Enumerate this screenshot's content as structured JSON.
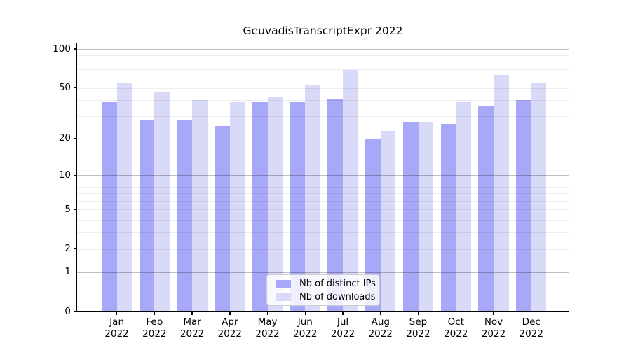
{
  "title": "GeuvadisTranscriptExpr 2022",
  "chart_data": {
    "type": "bar",
    "title": "GeuvadisTranscriptExpr 2022",
    "categories": [
      "Jan 2022",
      "Feb 2022",
      "Mar 2022",
      "Apr 2022",
      "May 2022",
      "Jun 2022",
      "Jul 2022",
      "Aug 2022",
      "Sep 2022",
      "Oct 2022",
      "Nov 2022",
      "Dec 2022"
    ],
    "x_tick_month": [
      "Jan",
      "Feb",
      "Mar",
      "Apr",
      "May",
      "Jun",
      "Jul",
      "Aug",
      "Sep",
      "Oct",
      "Nov",
      "Dec"
    ],
    "x_tick_year": "2022",
    "series": [
      {
        "name": "Nb of distinct IPs",
        "color": "#a8a8f8",
        "values": [
          39,
          28,
          28,
          25,
          39,
          39,
          41,
          20,
          27,
          26,
          36,
          40
        ]
      },
      {
        "name": "Nb of downloads",
        "color": "#d9d9f8",
        "values": [
          55,
          47,
          40,
          39,
          43,
          52,
          69,
          23,
          27,
          39,
          63,
          55
        ]
      }
    ],
    "ylabel": "",
    "xlabel": "",
    "yscale": "log10(1+x)",
    "ylim": [
      0,
      111
    ],
    "y_ticks": [
      0,
      1,
      2,
      5,
      10,
      20,
      50,
      100
    ],
    "major_gridlines": [
      1,
      10,
      100
    ],
    "minor_gridlines": [
      2,
      3,
      4,
      5,
      6,
      7,
      8,
      9,
      20,
      30,
      40,
      50,
      60,
      70,
      80,
      90
    ],
    "grid": "horizontal",
    "legend_position": "lower center"
  }
}
